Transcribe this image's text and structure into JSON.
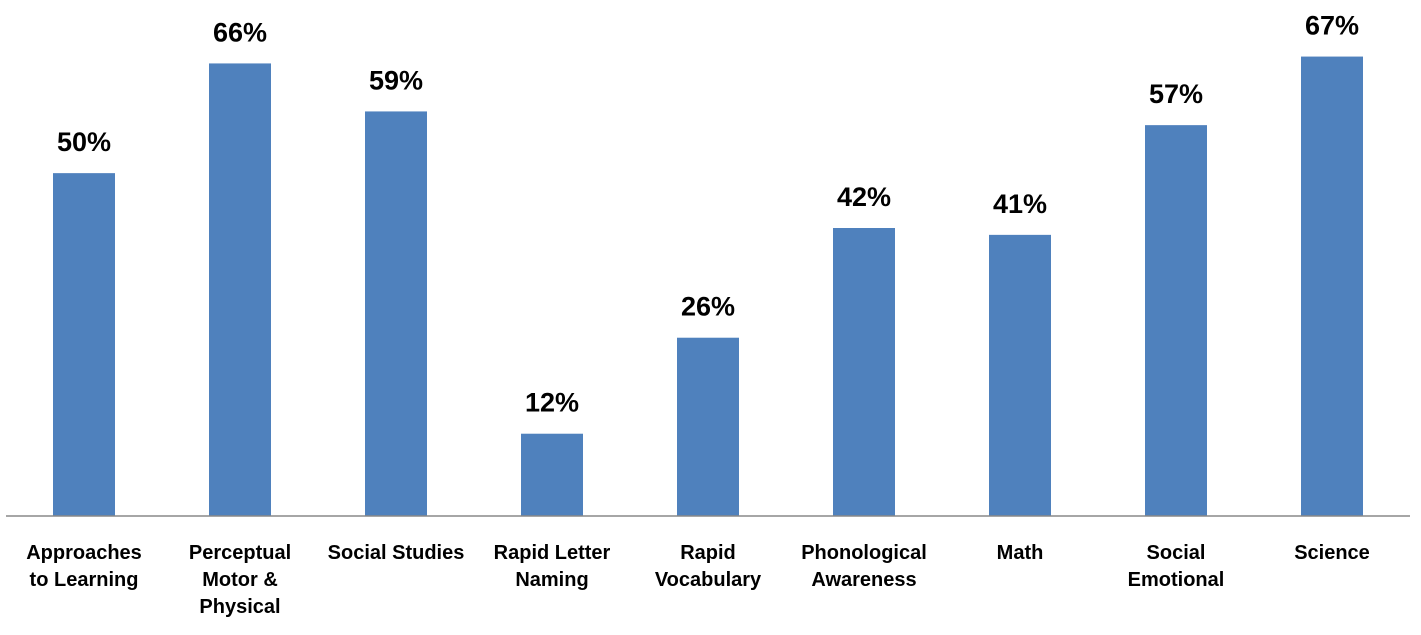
{
  "chart_data": {
    "type": "bar",
    "categories": [
      "Approaches to Learning",
      "Perceptual Motor & Physical",
      "Social Studies",
      "Rapid Letter Naming",
      "Rapid Vocabulary",
      "Phonological Awareness",
      "Math",
      "Social Emotional",
      "Science"
    ],
    "values": [
      50,
      66,
      59,
      12,
      26,
      42,
      41,
      57,
      67
    ],
    "value_labels": [
      "50%",
      "66%",
      "59%",
      "12%",
      "26%",
      "42%",
      "41%",
      "57%",
      "67%"
    ],
    "color": "#4f81bd",
    "ylim": [
      0,
      70
    ]
  }
}
